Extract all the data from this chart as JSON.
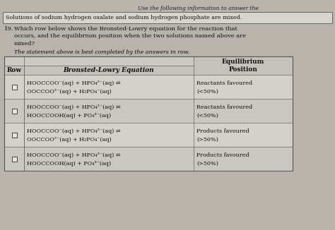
{
  "bg_color": "#b8b4ac",
  "header_text": "Use the following information to answer the",
  "info_box_text": "Solutions of sodium hydrogen oxalate and sodium hydrogen phosphate are mixed.",
  "question_number": "19.",
  "question_text": "Which row below shows the Bronsted-Lowry equation for the reaction that\noccurs, and the equilibrium position when the two solutions named above are\nmixed?",
  "statement_text": "The statement above is best completed by the answers in row.",
  "col_headers": [
    "Row",
    "Bronsted-Lowry Equation",
    "Equilibrium\nPosition"
  ],
  "rows": [
    {
      "equation_line1": "HOOCCOO⁻(aq) + HPO₄²⁻(aq) ⇌",
      "equation_line2": "OOCCOO²⁻(aq) + H₂PO₄⁻(aq)",
      "equilibrium_line1": "Reactants favoured",
      "equilibrium_line2": "(<50%)"
    },
    {
      "equation_line1": "HOOCCOO⁻(aq) + HPO₄²⁻(aq) ⇌",
      "equation_line2": "HOOCCOOH(aq) + PO₄³⁻(aq)",
      "equilibrium_line1": "Reactants favoured",
      "equilibrium_line2": "(<50%)"
    },
    {
      "equation_line1": "HOOCCOO⁻(aq) + HPO₄²⁻(aq) ⇌",
      "equation_line2": "OOCCOO²⁻(aq) + H₂PO₄⁻(aq)",
      "equilibrium_line1": "Products favoured",
      "equilibrium_line2": "(>50%)"
    },
    {
      "equation_line1": "HOOCCOO⁻(aq) + HPO₄²⁻(aq) ⇌",
      "equation_line2": "HOOCCOOH(aq) + PO₄³⁻(aq)",
      "equilibrium_line1": "Products favoured",
      "equilibrium_line2": "(>50%)"
    }
  ],
  "font_size_header": 5.5,
  "font_size_info": 5.8,
  "font_size_question": 6.0,
  "font_size_table_header": 6.5,
  "font_size_table_body": 5.8
}
